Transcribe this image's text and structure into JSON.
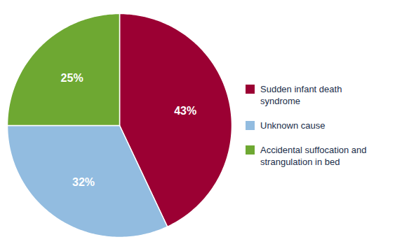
{
  "chart_data": {
    "type": "pie",
    "categories": [
      "Sudden infant death\nsyndrome",
      "Unknown cause",
      "Accidental suffocation and\nstrangulation in bed"
    ],
    "values": [
      43,
      32,
      25
    ],
    "value_labels": [
      "43%",
      "32%",
      "25%"
    ],
    "colors": [
      "#9B0033",
      "#92BCE0",
      "#6EA832"
    ],
    "data_labels": true,
    "legend": "right"
  }
}
